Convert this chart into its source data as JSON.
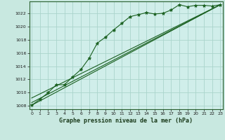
{
  "title": "Graphe pression niveau de la mer (hPa)",
  "bg_color": "#c8e8e0",
  "plot_bg_color": "#d0eeea",
  "grid_color": "#aad4cc",
  "line_color": "#1a6020",
  "xlim": [
    0,
    23
  ],
  "ylim": [
    1007.5,
    1023.8
  ],
  "yticks": [
    1008,
    1010,
    1012,
    1014,
    1016,
    1018,
    1020,
    1022
  ],
  "xticks": [
    0,
    1,
    2,
    3,
    4,
    5,
    6,
    7,
    8,
    9,
    10,
    11,
    12,
    13,
    14,
    15,
    16,
    17,
    18,
    19,
    20,
    21,
    22,
    23
  ],
  "main_line": {
    "x": [
      0,
      1,
      2,
      3,
      4,
      5,
      6,
      7,
      8,
      9,
      10,
      11,
      12,
      13,
      14,
      15,
      16,
      17,
      18,
      19,
      20,
      21,
      22,
      23
    ],
    "y": [
      1008.1,
      1009.0,
      1010.0,
      1011.2,
      1011.2,
      1012.4,
      1013.5,
      1015.2,
      1017.5,
      1018.4,
      1019.5,
      1020.5,
      1021.5,
      1021.8,
      1022.1,
      1021.9,
      1022.0,
      1022.5,
      1023.3,
      1023.0,
      1023.2,
      1023.2,
      1023.1,
      1023.3
    ]
  },
  "trend_line1": {
    "x": [
      0,
      23
    ],
    "y": [
      1008.1,
      1023.3
    ]
  },
  "trend_line2": {
    "x": [
      0,
      23
    ],
    "y": [
      1008.5,
      1023.3
    ]
  },
  "trend_line3": {
    "x": [
      0,
      23
    ],
    "y": [
      1009.2,
      1023.3
    ]
  }
}
